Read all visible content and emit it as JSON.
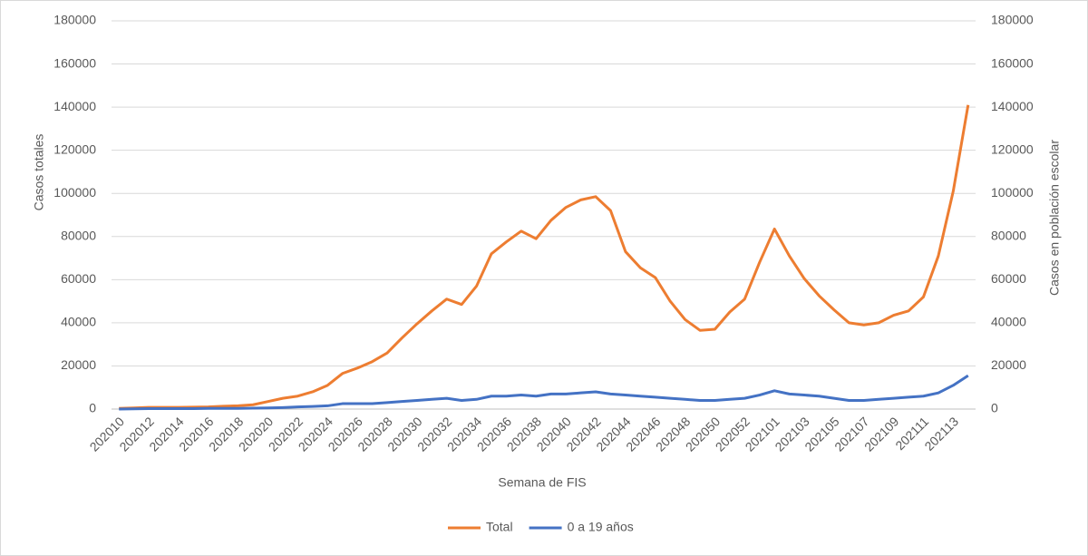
{
  "chart_data": {
    "type": "line",
    "x_label": "Semana de FIS",
    "y_label": "Casos totales",
    "y2_label": "Casos en población escolar",
    "categories": [
      "202010",
      null,
      "202012",
      null,
      "202014",
      null,
      "202016",
      null,
      "202018",
      null,
      "202020",
      null,
      "202022",
      null,
      "202024",
      null,
      "202026",
      null,
      "202028",
      null,
      "202030",
      null,
      "202032",
      null,
      "202034",
      null,
      "202036",
      null,
      "202038",
      null,
      "202040",
      null,
      "202042",
      null,
      "202044",
      null,
      "202046",
      null,
      "202048",
      null,
      "202050",
      null,
      "202052",
      null,
      "202101",
      null,
      "202103",
      null,
      "202105",
      null,
      "202107",
      null,
      "202109",
      null,
      "202111",
      null,
      "202113",
      null
    ],
    "series": [
      {
        "name": "Total",
        "color": "#ed7d31",
        "values": [
          300,
          500,
          800,
          800,
          800,
          900,
          1000,
          1300,
          1500,
          2000,
          3500,
          5000,
          6000,
          8000,
          11000,
          16500,
          19000,
          22000,
          26000,
          33000,
          39500,
          45500,
          51000,
          48500,
          57000,
          72000,
          77500,
          82500,
          79000,
          87500,
          93500,
          97000,
          98500,
          92000,
          73000,
          65500,
          61000,
          50000,
          41500,
          36500,
          37000,
          45000,
          51000,
          68000,
          83500,
          71000,
          60500,
          52500,
          46000,
          40000,
          39000,
          40000,
          43500,
          45500,
          52000,
          71000,
          101000,
          141000
        ]
      },
      {
        "name": "0 a 19 años",
        "color": "#4472c4",
        "axis": "y2",
        "values": [
          0,
          100,
          200,
          200,
          200,
          200,
          300,
          300,
          300,
          400,
          500,
          700,
          1000,
          1200,
          1500,
          2500,
          2500,
          2500,
          3000,
          3500,
          4000,
          4500,
          5000,
          4000,
          4500,
          6000,
          6000,
          6500,
          6000,
          7000,
          7000,
          7500,
          8000,
          7000,
          6500,
          6000,
          5500,
          5000,
          4500,
          4000,
          4000,
          4500,
          5000,
          6500,
          8500,
          7000,
          6500,
          6000,
          5000,
          4000,
          4000,
          4500,
          5000,
          5500,
          6000,
          7500,
          11000,
          15500
        ]
      }
    ],
    "ylim": [
      0,
      180000
    ],
    "yticks": [
      0,
      20000,
      40000,
      60000,
      80000,
      100000,
      120000,
      140000,
      160000,
      180000
    ],
    "y2lim": [
      0,
      180000
    ],
    "y2ticks": [
      0,
      20000,
      40000,
      60000,
      80000,
      100000,
      120000,
      140000,
      160000,
      180000
    ],
    "grid": true,
    "legend": "bottom"
  }
}
